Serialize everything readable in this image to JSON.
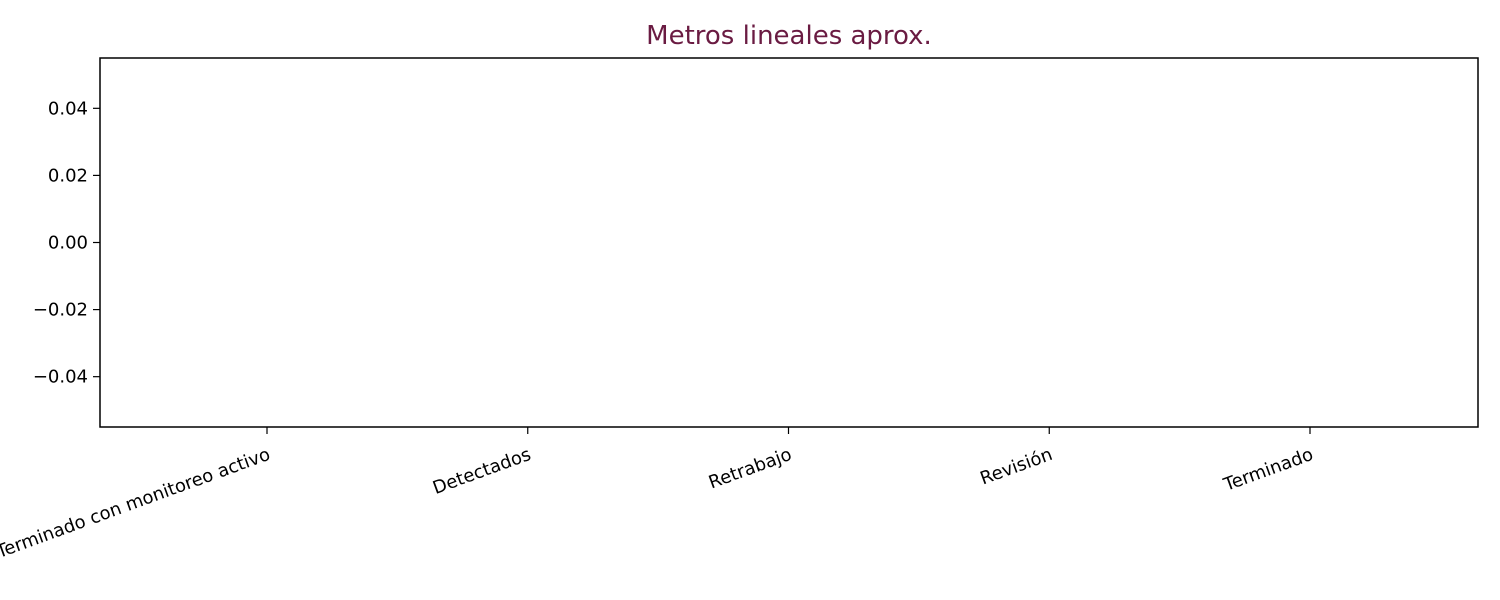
{
  "chart_data": {
    "type": "bar",
    "title": "Metros lineales aprox.",
    "title_color": "#6a1b42",
    "xlabel": "",
    "ylabel": "",
    "categories": [
      "Terminado con monitoreo activo",
      "Detectados",
      "Retrabajo",
      "Revisión",
      "Terminado"
    ],
    "values": [
      0,
      0,
      0,
      0,
      0
    ],
    "ylim": [
      -0.055,
      0.055
    ],
    "yticks": [
      0.04,
      0.02,
      0.0,
      -0.02,
      -0.04
    ],
    "ytick_labels": [
      "0.04",
      "0.02",
      "0.00",
      "−0.02",
      "−0.04"
    ],
    "grid": false,
    "legend": "none",
    "xtick_rotation_deg": -20
  }
}
